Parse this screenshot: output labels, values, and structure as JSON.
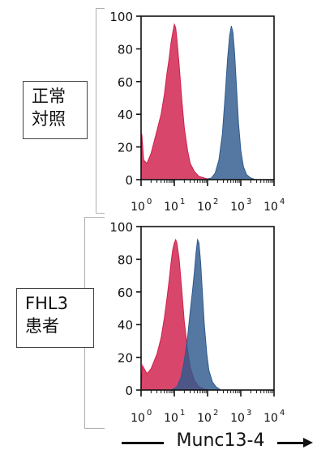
{
  "chart_data": [
    {
      "type": "area",
      "group_label": "正常\n対照",
      "x_scale": "log",
      "xlim": [
        1,
        10000
      ],
      "ylim": [
        0,
        100
      ],
      "x_ticks": [
        1,
        10,
        100,
        1000,
        10000
      ],
      "x_tick_labels": [
        "0",
        "1",
        "2",
        "3",
        "4"
      ],
      "y_ticks": [
        0,
        20,
        40,
        60,
        80,
        100
      ],
      "y_tick_labels": [
        "0",
        "20",
        "40",
        "60",
        "80",
        "100"
      ],
      "series": [
        {
          "color": "#d01f4a",
          "points": [
            [
              1,
              0
            ],
            [
              1.05,
              28
            ],
            [
              1.2,
              12
            ],
            [
              1.5,
              10
            ],
            [
              2,
              16
            ],
            [
              3,
              30
            ],
            [
              4,
              40
            ],
            [
              5,
              52
            ],
            [
              6,
              65
            ],
            [
              7,
              74
            ],
            [
              8,
              84
            ],
            [
              9,
              90
            ],
            [
              10,
              95
            ],
            [
              11,
              93
            ],
            [
              12,
              86
            ],
            [
              14,
              70
            ],
            [
              17,
              48
            ],
            [
              20,
              32
            ],
            [
              25,
              18
            ],
            [
              30,
              10
            ],
            [
              40,
              5
            ],
            [
              55,
              2
            ],
            [
              80,
              1
            ],
            [
              120,
              0
            ]
          ]
        },
        {
          "color": "#2e5a8e",
          "points": [
            [
              80,
              0
            ],
            [
              130,
              1
            ],
            [
              170,
              4
            ],
            [
              220,
              12
            ],
            [
              280,
              28
            ],
            [
              340,
              52
            ],
            [
              400,
              74
            ],
            [
              460,
              88
            ],
            [
              520,
              94
            ],
            [
              580,
              90
            ],
            [
              650,
              78
            ],
            [
              750,
              55
            ],
            [
              850,
              35
            ],
            [
              1000,
              18
            ],
            [
              1200,
              8
            ],
            [
              1500,
              3
            ],
            [
              2000,
              1
            ],
            [
              2800,
              0
            ]
          ]
        }
      ]
    },
    {
      "type": "area",
      "group_label": "FHL3\n患者",
      "x_scale": "log",
      "xlim": [
        1,
        10000
      ],
      "ylim": [
        0,
        100
      ],
      "x_ticks": [
        1,
        10,
        100,
        1000,
        10000
      ],
      "x_tick_labels": [
        "0",
        "1",
        "2",
        "3",
        "4"
      ],
      "y_ticks": [
        0,
        20,
        40,
        60,
        80,
        100
      ],
      "y_tick_labels": [
        "0",
        "20",
        "40",
        "60",
        "80",
        "100"
      ],
      "series": [
        {
          "color": "#d01f4a",
          "points": [
            [
              1,
              0
            ],
            [
              1.1,
              15
            ],
            [
              1.5,
              10
            ],
            [
              2,
              13
            ],
            [
              3,
              22
            ],
            [
              4,
              32
            ],
            [
              5,
              44
            ],
            [
              6,
              56
            ],
            [
              7,
              67
            ],
            [
              8,
              78
            ],
            [
              9,
              86
            ],
            [
              10,
              90
            ],
            [
              11,
              92
            ],
            [
              12,
              90
            ],
            [
              14,
              80
            ],
            [
              17,
              60
            ],
            [
              20,
              42
            ],
            [
              25,
              25
            ],
            [
              30,
              14
            ],
            [
              40,
              6
            ],
            [
              55,
              2
            ],
            [
              80,
              0.5
            ],
            [
              110,
              0
            ]
          ]
        },
        {
          "color": "#2e5a8e",
          "points": [
            [
              8,
              0
            ],
            [
              12,
              2
            ],
            [
              16,
              8
            ],
            [
              20,
              18
            ],
            [
              25,
              32
            ],
            [
              30,
              48
            ],
            [
              35,
              60
            ],
            [
              40,
              72
            ],
            [
              45,
              84
            ],
            [
              50,
              92
            ],
            [
              55,
              90
            ],
            [
              62,
              78
            ],
            [
              70,
              60
            ],
            [
              80,
              40
            ],
            [
              95,
              22
            ],
            [
              110,
              12
            ],
            [
              140,
              5
            ],
            [
              180,
              2
            ],
            [
              250,
              0
            ]
          ]
        }
      ]
    }
  ],
  "xaxis": {
    "label": "Munc13-4"
  }
}
